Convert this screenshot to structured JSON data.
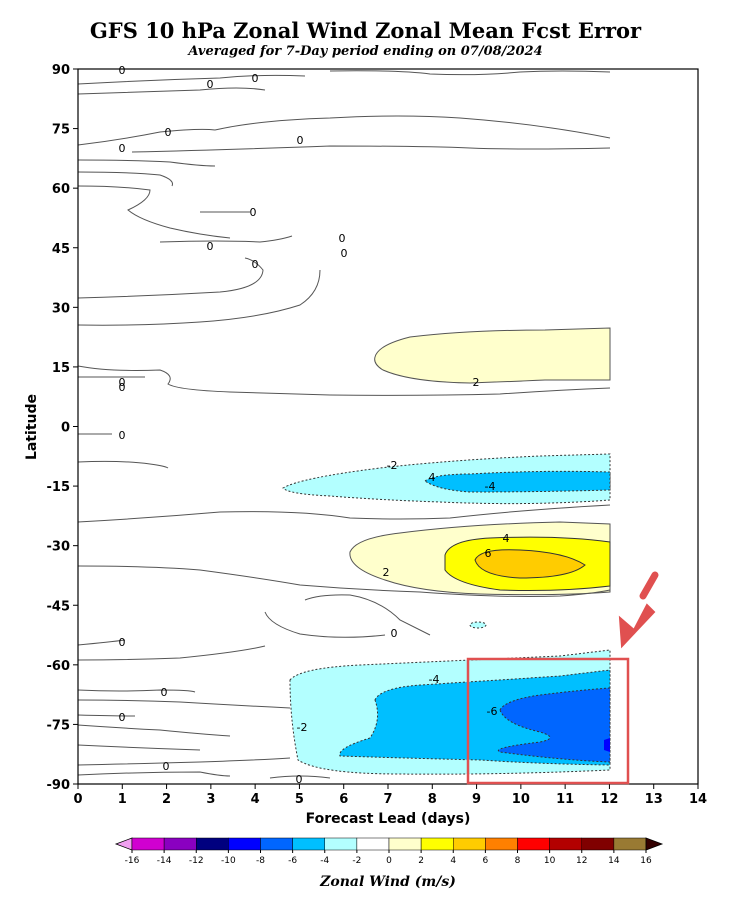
{
  "chart_data": {
    "type": "contour",
    "title": "GFS 10 hPa Zonal Wind Zonal Mean Fcst Error",
    "subtitle": "Averaged for 7-Day period ending on 07/08/2024",
    "xlabel": "Forecast Lead (days)",
    "ylabel": "Latitude",
    "xlim": [
      0,
      14
    ],
    "ylim": [
      -90,
      90
    ],
    "x_ticks": [
      "0",
      "1",
      "2",
      "3",
      "4",
      "5",
      "6",
      "7",
      "8",
      "9",
      "10",
      "11",
      "12",
      "13",
      "14"
    ],
    "y_ticks": [
      "90",
      "75",
      "60",
      "45",
      "30",
      "15",
      "0",
      "-15",
      "-30",
      "-45",
      "-60",
      "-75",
      "-90"
    ],
    "data_extent_x": [
      0,
      12
    ],
    "contour_levels": [
      -16,
      -14,
      -12,
      -10,
      -8,
      -6,
      -4,
      -2,
      0,
      2,
      4,
      6,
      8,
      10,
      12,
      14,
      16
    ],
    "colorbar": {
      "label": "Zonal Wind (m/s)",
      "tick_labels": [
        "-16",
        "-14",
        "-12",
        "-10",
        "-8",
        "-6",
        "-4",
        "-2",
        "0",
        "2",
        "4",
        "6",
        "8",
        "10",
        "12",
        "14",
        "16"
      ],
      "colors": [
        "#f0a0f0",
        "#d000d0",
        "#8a00c0",
        "#00007f",
        "#0000ff",
        "#0066ff",
        "#00bfff",
        "#b3ffff",
        "#ffffff",
        "#ffffcc",
        "#ffff00",
        "#ffcc00",
        "#ff8000",
        "#ff0000",
        "#b30000",
        "#800000",
        "#997a33",
        "#330000"
      ]
    },
    "regions": [
      {
        "name": "positive",
        "level_min": 2,
        "x": [
          7,
          12
        ],
        "y": [
          11,
          25
        ]
      },
      {
        "name": "negative",
        "level_max": -2,
        "x": [
          4.7,
          12
        ],
        "y": [
          -21,
          -9
        ]
      },
      {
        "name": "negative",
        "level_max": -4,
        "x": [
          7.6,
          12
        ],
        "y": [
          -18,
          -11
        ]
      },
      {
        "name": "positive",
        "level_min": 2,
        "x": [
          6,
          12
        ],
        "y": [
          -42,
          -24
        ]
      },
      {
        "name": "positive",
        "level_min": 4,
        "x": [
          7.5,
          12
        ],
        "y": [
          -40,
          -27
        ]
      },
      {
        "name": "positive",
        "level_min": 6,
        "x": [
          9,
          11.5
        ],
        "y": [
          -38,
          -30
        ]
      },
      {
        "name": "negative",
        "level_max": -2,
        "x": [
          4.7,
          12
        ],
        "y": [
          -88,
          -61
        ]
      },
      {
        "name": "negative",
        "level_max": -4,
        "x": [
          5.2,
          12
        ],
        "y": [
          -84,
          -64
        ]
      },
      {
        "name": "negative",
        "level_max": -6,
        "x": [
          9.5,
          12
        ],
        "y": [
          -82,
          -64
        ]
      },
      {
        "name": "negative",
        "level_max": -8,
        "x": [
          11.9,
          12
        ],
        "y": [
          -81,
          -79
        ]
      }
    ],
    "contour_labels": [
      "0",
      "0",
      "0",
      "0",
      "0",
      "0",
      "0",
      "0",
      "0",
      "0",
      "0",
      "0",
      "0",
      "0",
      "0",
      "2",
      "-2",
      "4",
      "-4",
      "4",
      "6",
      "2",
      "0",
      "0",
      "-4",
      "-6",
      "-2",
      "0",
      "0",
      "0"
    ],
    "annotation": {
      "type": "highlight-box-with-arrow",
      "x": [
        8.9,
        12.4
      ],
      "y": [
        -90,
        -59
      ]
    }
  }
}
